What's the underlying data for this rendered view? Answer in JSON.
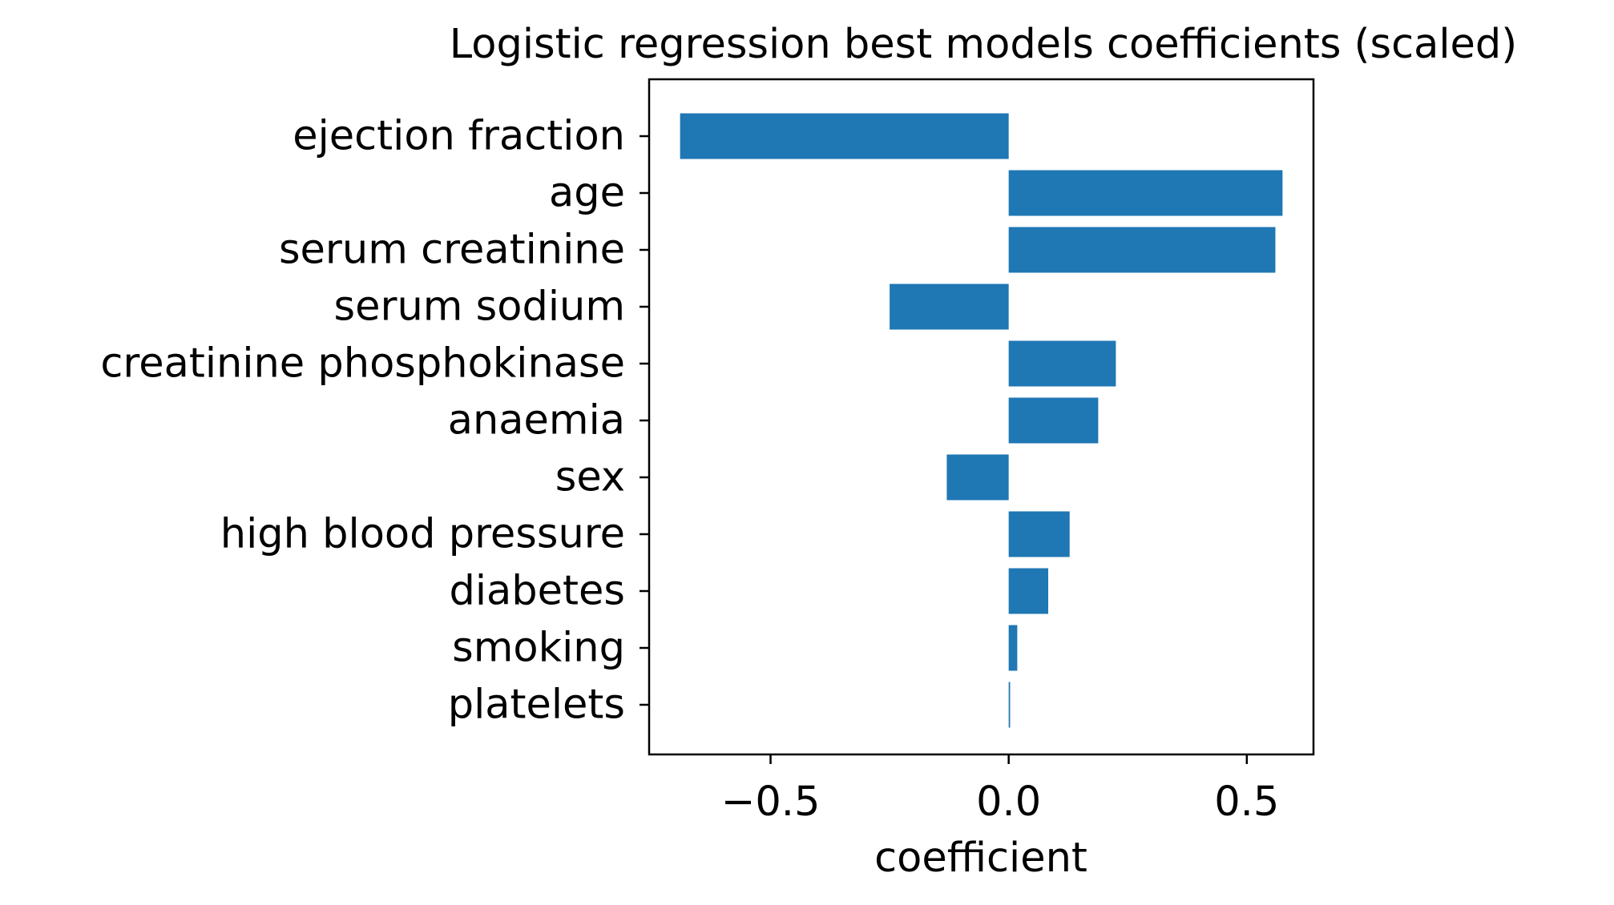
{
  "chart_data": {
    "type": "bar",
    "orientation": "horizontal",
    "title": "Logistic regression best models coefficients (scaled)",
    "xlabel": "coefficient",
    "ylabel": "",
    "categories": [
      "ejection fraction",
      "age",
      "serum creatinine",
      "serum sodium",
      "creatinine phosphokinase",
      "anaemia",
      "sex",
      "high blood pressure",
      "diabetes",
      "smoking",
      "platelets"
    ],
    "values": [
      -0.69,
      0.575,
      0.56,
      -0.25,
      0.225,
      0.188,
      -0.13,
      0.128,
      0.083,
      0.018,
      0.003
    ],
    "xlim": [
      -0.755,
      0.64
    ],
    "xticks": [
      -0.5,
      0.0,
      0.5
    ],
    "xtick_labels": [
      "−0.5",
      "0.0",
      "0.5"
    ],
    "bar_color": "#1f77b4",
    "grid": false,
    "legend": "none"
  }
}
